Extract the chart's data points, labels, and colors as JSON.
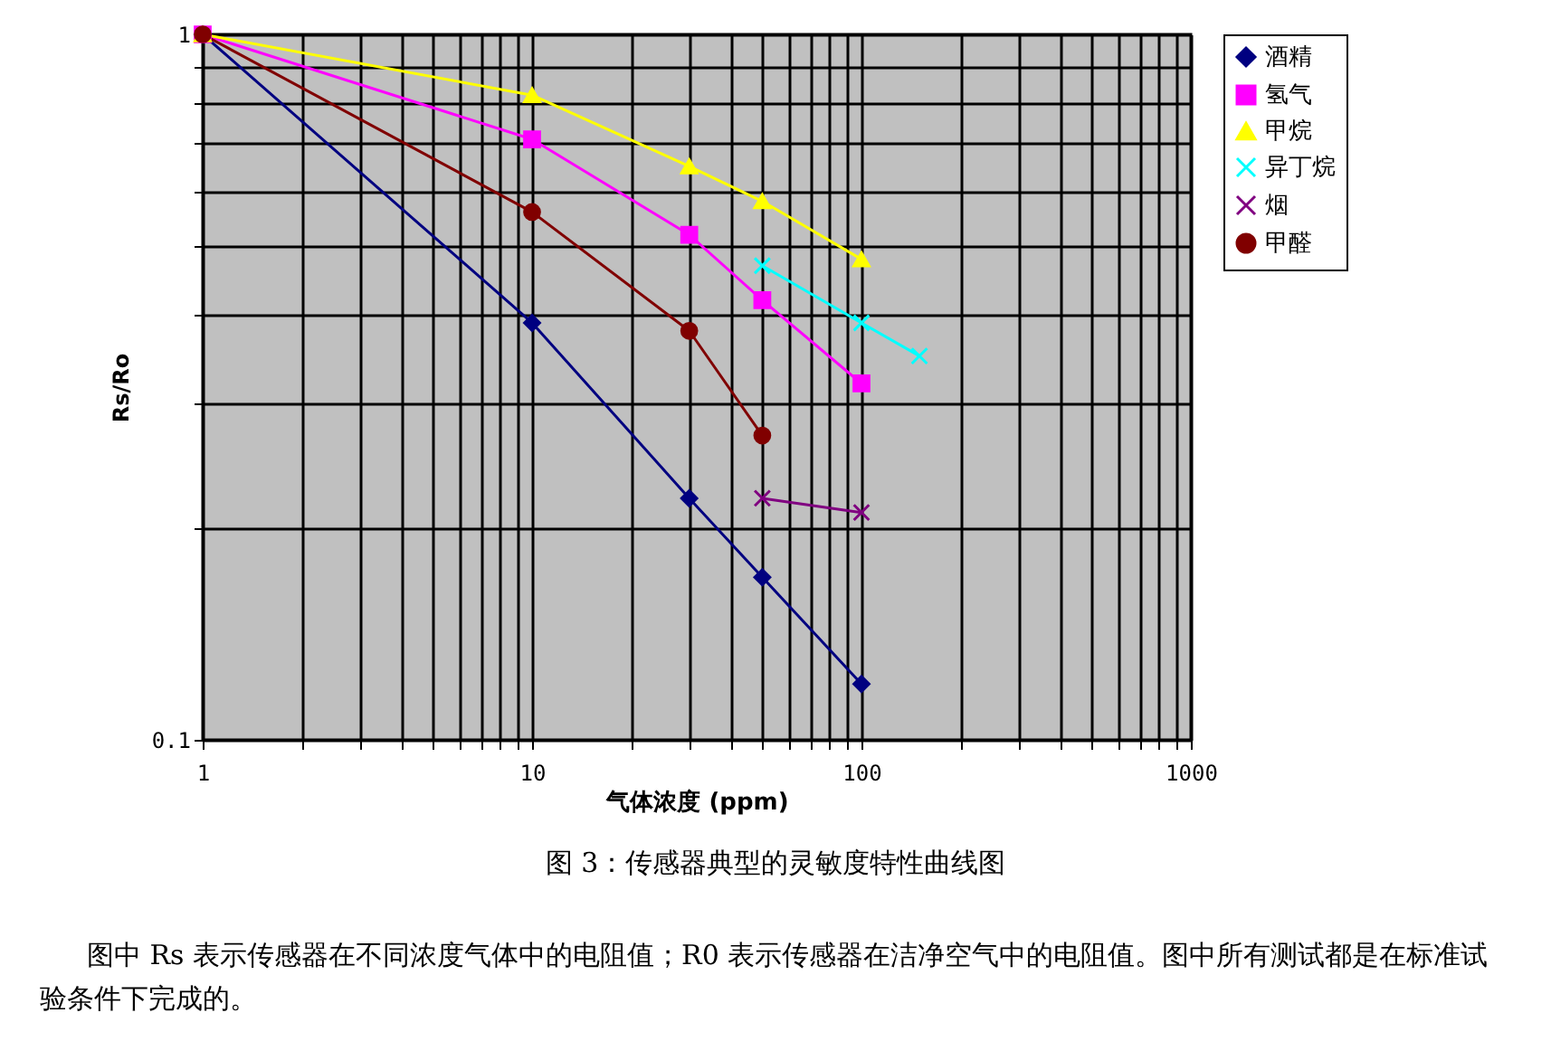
{
  "chart_data": {
    "type": "line",
    "xlabel": "气体浓度 (ppm)",
    "ylabel": "Rs/Ro",
    "log": "xy",
    "grid": true,
    "legend": "right",
    "xlim": [
      1,
      1000
    ],
    "ylim": [
      0.1,
      1
    ],
    "xticks": [
      1,
      {
        "value": 2,
        "label": null
      },
      {
        "value": 3,
        "label": null
      },
      {
        "value": 4,
        "label": null
      },
      {
        "value": 5,
        "label": null
      },
      {
        "value": 6,
        "label": null
      },
      {
        "value": 7,
        "label": null
      },
      {
        "value": 8,
        "label": null
      },
      {
        "value": 9,
        "label": null
      },
      10,
      {
        "value": 20,
        "label": null
      },
      {
        "value": 30,
        "label": null
      },
      {
        "value": 40,
        "label": null
      },
      {
        "value": 50,
        "label": null
      },
      {
        "value": 60,
        "label": null
      },
      {
        "value": 70,
        "label": null
      },
      {
        "value": 80,
        "label": null
      },
      {
        "value": 90,
        "label": null
      },
      100,
      {
        "value": 200,
        "label": null
      },
      {
        "value": 300,
        "label": null
      },
      {
        "value": 400,
        "label": null
      },
      {
        "value": 500,
        "label": null
      },
      {
        "value": 600,
        "label": null
      },
      {
        "value": 700,
        "label": null
      },
      {
        "value": 800,
        "label": null
      },
      {
        "value": 900,
        "label": null
      },
      1000
    ],
    "yticks": [
      0.1,
      {
        "value": 0.2,
        "label": null
      },
      {
        "value": 0.3,
        "label": null
      },
      {
        "value": 0.4,
        "label": null
      },
      {
        "value": 0.5,
        "label": null
      },
      {
        "value": 0.6,
        "label": null
      },
      {
        "value": 0.7,
        "label": null
      },
      {
        "value": 0.8,
        "label": null
      },
      {
        "value": 0.9,
        "label": null
      },
      1
    ],
    "series": [
      {
        "name": "酒精",
        "color": "#000080",
        "marker": "diamond",
        "x": [
          1,
          10,
          30,
          50,
          100
        ],
        "values": [
          1,
          0.39,
          0.22,
          0.17,
          0.12
        ]
      },
      {
        "name": "氢气",
        "color": "#ff00ff",
        "marker": "square",
        "x": [
          1,
          10,
          30,
          50,
          100
        ],
        "values": [
          1,
          0.71,
          0.52,
          0.42,
          0.32
        ]
      },
      {
        "name": "甲烷",
        "color": "#ffff00",
        "marker": "triangle",
        "x": [
          1,
          10,
          30,
          50,
          100
        ],
        "values": [
          1,
          0.82,
          0.65,
          0.58,
          0.48
        ]
      },
      {
        "name": "异丁烷",
        "color": "#00ffff",
        "marker": "cross",
        "x": [
          50,
          100,
          150
        ],
        "values": [
          0.47,
          0.39,
          0.35
        ]
      },
      {
        "name": "烟",
        "color": "#800080",
        "marker": "cross",
        "x": [
          50,
          100
        ],
        "values": [
          0.22,
          0.21
        ]
      },
      {
        "name": "甲醛",
        "color": "#800000",
        "marker": "circle",
        "x": [
          1,
          10,
          30,
          50
        ],
        "values": [
          1,
          0.56,
          0.38,
          0.27
        ]
      }
    ],
    "annotations": [
      "图 3：传感器典型的灵敏度特性曲线图",
      "图中 Rs 表示传感器在不同浓度气体中的电阻值；R0 表示传感器在洁净空气中的电阻值。图中所有测试都是在标准试验条件下完成的。"
    ]
  }
}
